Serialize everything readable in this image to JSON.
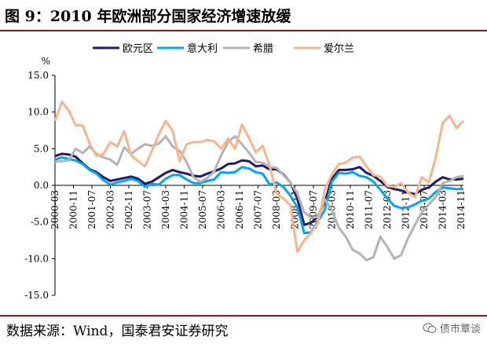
{
  "header": {
    "title": "图 9：2010 年欧洲部分国家经济增速放缓"
  },
  "footer": {
    "source": "数据来源：Wind，国泰君安证券研究",
    "watermark": "债市覃谈",
    "watermark_icon": "wechat-icon"
  },
  "chart_data": {
    "type": "line",
    "ylabel": "%",
    "ylim": [
      -15,
      15
    ],
    "yticks": [
      "15.0",
      "10.0",
      "5.0",
      "0.0",
      "-5.0",
      "-10.0",
      "-15.0"
    ],
    "yticks_values": [
      15,
      10,
      5,
      0,
      -5,
      -10,
      -15
    ],
    "x_start": "2000-03",
    "x_end": "2014-12",
    "x_tick_labels": [
      "2000-03",
      "2000-11",
      "2001-07",
      "2002-03",
      "2002-11",
      "2003-07",
      "2004-03",
      "2004-11",
      "2005-07",
      "2006-03",
      "2006-11",
      "2007-07",
      "2008-03",
      "2008-11",
      "2009-07",
      "2010-03",
      "2010-11",
      "2011-07",
      "2012-03",
      "2012-11",
      "2013-07",
      "2014-03",
      "2014-11"
    ],
    "legend_position": "top",
    "series": [
      {
        "name": "欧元区",
        "color": "#1f1a6e",
        "points": [
          [
            "2000-03",
            4.0
          ],
          [
            "2000-06",
            4.3
          ],
          [
            "2000-09",
            4.2
          ],
          [
            "2000-12",
            3.9
          ],
          [
            "2001-03",
            3.0
          ],
          [
            "2001-06",
            2.2
          ],
          [
            "2001-09",
            1.8
          ],
          [
            "2001-12",
            1.1
          ],
          [
            "2002-03",
            0.6
          ],
          [
            "2002-06",
            0.8
          ],
          [
            "2002-09",
            1.0
          ],
          [
            "2002-12",
            1.2
          ],
          [
            "2003-03",
            0.9
          ],
          [
            "2003-06",
            0.2
          ],
          [
            "2003-09",
            0.5
          ],
          [
            "2003-12",
            1.1
          ],
          [
            "2004-03",
            1.7
          ],
          [
            "2004-06",
            2.1
          ],
          [
            "2004-09",
            1.8
          ],
          [
            "2004-12",
            1.6
          ],
          [
            "2005-03",
            1.3
          ],
          [
            "2005-06",
            1.2
          ],
          [
            "2005-09",
            1.6
          ],
          [
            "2005-12",
            1.9
          ],
          [
            "2006-03",
            2.3
          ],
          [
            "2006-06",
            2.9
          ],
          [
            "2006-09",
            3.0
          ],
          [
            "2006-12",
            3.4
          ],
          [
            "2007-03",
            3.3
          ],
          [
            "2007-06",
            2.6
          ],
          [
            "2007-09",
            2.7
          ],
          [
            "2007-12",
            2.2
          ],
          [
            "2008-03",
            2.2
          ],
          [
            "2008-06",
            1.5
          ],
          [
            "2008-09",
            0.4
          ],
          [
            "2008-12",
            -1.8
          ],
          [
            "2009-03",
            -5.4
          ],
          [
            "2009-06",
            -5.1
          ],
          [
            "2009-09",
            -4.2
          ],
          [
            "2009-12",
            -2.2
          ],
          [
            "2010-03",
            0.9
          ],
          [
            "2010-06",
            2.1
          ],
          [
            "2010-09",
            2.1
          ],
          [
            "2010-12",
            2.2
          ],
          [
            "2011-03",
            2.5
          ],
          [
            "2011-06",
            1.7
          ],
          [
            "2011-09",
            1.3
          ],
          [
            "2011-12",
            0.6
          ],
          [
            "2012-03",
            -0.2
          ],
          [
            "2012-06",
            -0.5
          ],
          [
            "2012-09",
            -0.7
          ],
          [
            "2012-12",
            -1.0
          ],
          [
            "2013-03",
            -1.2
          ],
          [
            "2013-06",
            -0.6
          ],
          [
            "2013-09",
            -0.3
          ],
          [
            "2013-12",
            0.5
          ],
          [
            "2014-03",
            1.1
          ],
          [
            "2014-06",
            0.8
          ],
          [
            "2014-09",
            0.8
          ],
          [
            "2014-12",
            0.9
          ]
        ]
      },
      {
        "name": "意大利",
        "color": "#00a8e8",
        "points": [
          [
            "2000-03",
            3.5
          ],
          [
            "2000-06",
            3.8
          ],
          [
            "2000-09",
            3.6
          ],
          [
            "2000-12",
            3.4
          ],
          [
            "2001-03",
            2.9
          ],
          [
            "2001-06",
            2.1
          ],
          [
            "2001-09",
            1.6
          ],
          [
            "2001-12",
            0.7
          ],
          [
            "2002-03",
            0.1
          ],
          [
            "2002-06",
            0.4
          ],
          [
            "2002-09",
            0.6
          ],
          [
            "2002-12",
            0.9
          ],
          [
            "2003-03",
            0.6
          ],
          [
            "2003-06",
            -0.2
          ],
          [
            "2003-09",
            0.2
          ],
          [
            "2003-12",
            0.1
          ],
          [
            "2004-03",
            0.9
          ],
          [
            "2004-06",
            1.4
          ],
          [
            "2004-09",
            1.4
          ],
          [
            "2004-12",
            0.8
          ],
          [
            "2005-03",
            0.3
          ],
          [
            "2005-06",
            0.3
          ],
          [
            "2005-09",
            0.6
          ],
          [
            "2005-12",
            0.8
          ],
          [
            "2006-03",
            1.8
          ],
          [
            "2006-06",
            1.7
          ],
          [
            "2006-09",
            1.8
          ],
          [
            "2006-12",
            2.5
          ],
          [
            "2007-03",
            2.3
          ],
          [
            "2007-06",
            1.8
          ],
          [
            "2007-09",
            1.6
          ],
          [
            "2007-12",
            0.1
          ],
          [
            "2008-03",
            0.4
          ],
          [
            "2008-06",
            -0.2
          ],
          [
            "2008-09",
            -1.4
          ],
          [
            "2008-12",
            -3.0
          ],
          [
            "2009-03",
            -6.5
          ],
          [
            "2009-06",
            -6.4
          ],
          [
            "2009-09",
            -4.9
          ],
          [
            "2009-12",
            -3.3
          ],
          [
            "2010-03",
            0.5
          ],
          [
            "2010-06",
            1.7
          ],
          [
            "2010-09",
            1.6
          ],
          [
            "2010-12",
            1.8
          ],
          [
            "2011-03",
            1.3
          ],
          [
            "2011-06",
            1.1
          ],
          [
            "2011-09",
            0.5
          ],
          [
            "2011-12",
            -0.6
          ],
          [
            "2012-03",
            -1.8
          ],
          [
            "2012-06",
            -2.8
          ],
          [
            "2012-09",
            -3.1
          ],
          [
            "2012-12",
            -3.0
          ],
          [
            "2013-03",
            -2.6
          ],
          [
            "2013-06",
            -2.1
          ],
          [
            "2013-09",
            -1.8
          ],
          [
            "2013-12",
            -0.9
          ],
          [
            "2014-03",
            -0.3
          ],
          [
            "2014-06",
            -0.4
          ],
          [
            "2014-09",
            -0.5
          ],
          [
            "2014-12",
            -0.5
          ]
        ]
      },
      {
        "name": "希腊",
        "color": "#b3b3b3",
        "points": [
          [
            "2000-03",
            3.2
          ],
          [
            "2000-06",
            3.3
          ],
          [
            "2000-09",
            3.4
          ],
          [
            "2000-12",
            5.0
          ],
          [
            "2001-03",
            4.4
          ],
          [
            "2001-06",
            5.3
          ],
          [
            "2001-09",
            4.3
          ],
          [
            "2001-12",
            3.8
          ],
          [
            "2002-03",
            3.5
          ],
          [
            "2002-06",
            2.8
          ],
          [
            "2002-09",
            5.2
          ],
          [
            "2002-12",
            4.3
          ],
          [
            "2003-03",
            5.0
          ],
          [
            "2003-06",
            5.6
          ],
          [
            "2003-09",
            5.4
          ],
          [
            "2003-12",
            5.7
          ],
          [
            "2004-03",
            6.7
          ],
          [
            "2004-06",
            5.3
          ],
          [
            "2004-09",
            4.7
          ],
          [
            "2004-12",
            3.2
          ],
          [
            "2005-03",
            1.1
          ],
          [
            "2005-06",
            0.5
          ],
          [
            "2005-09",
            1.0
          ],
          [
            "2005-12",
            1.9
          ],
          [
            "2006-03",
            4.1
          ],
          [
            "2006-06",
            5.9
          ],
          [
            "2006-09",
            6.7
          ],
          [
            "2006-12",
            5.6
          ],
          [
            "2007-03",
            4.5
          ],
          [
            "2007-06",
            3.2
          ],
          [
            "2007-09",
            3.1
          ],
          [
            "2007-12",
            2.5
          ],
          [
            "2008-03",
            2.4
          ],
          [
            "2008-06",
            1.4
          ],
          [
            "2008-09",
            0.4
          ],
          [
            "2008-12",
            -1.1
          ],
          [
            "2009-03",
            -3.7
          ],
          [
            "2009-06",
            -4.4
          ],
          [
            "2009-09",
            -4.3
          ],
          [
            "2009-12",
            -1.9
          ],
          [
            "2010-03",
            -3.4
          ],
          [
            "2010-06",
            -5.8
          ],
          [
            "2010-09",
            -7.0
          ],
          [
            "2010-12",
            -8.8
          ],
          [
            "2011-03",
            -9.3
          ],
          [
            "2011-06",
            -10.2
          ],
          [
            "2011-09",
            -9.8
          ],
          [
            "2011-12",
            -7.0
          ],
          [
            "2012-03",
            -8.4
          ],
          [
            "2012-06",
            -10.0
          ],
          [
            "2012-09",
            -9.5
          ],
          [
            "2012-12",
            -7.2
          ],
          [
            "2013-03",
            -5.4
          ],
          [
            "2013-06",
            -3.7
          ],
          [
            "2013-09",
            -2.6
          ],
          [
            "2013-12",
            -1.6
          ],
          [
            "2014-03",
            0.3
          ],
          [
            "2014-06",
            0.6
          ],
          [
            "2014-09",
            1.1
          ],
          [
            "2014-12",
            1.3
          ]
        ]
      },
      {
        "name": "爱尔兰",
        "color": "#f8b48a",
        "points": [
          [
            "2000-03",
            8.8
          ],
          [
            "2000-06",
            11.4
          ],
          [
            "2000-09",
            10.2
          ],
          [
            "2000-12",
            8.2
          ],
          [
            "2001-03",
            8.2
          ],
          [
            "2001-06",
            5.7
          ],
          [
            "2001-09",
            4.0
          ],
          [
            "2001-12",
            4.3
          ],
          [
            "2002-03",
            5.9
          ],
          [
            "2002-06",
            5.3
          ],
          [
            "2002-09",
            7.4
          ],
          [
            "2002-12",
            4.1
          ],
          [
            "2003-03",
            3.3
          ],
          [
            "2003-06",
            2.6
          ],
          [
            "2003-09",
            4.7
          ],
          [
            "2003-12",
            7.0
          ],
          [
            "2004-03",
            8.8
          ],
          [
            "2004-06",
            7.4
          ],
          [
            "2004-09",
            3.3
          ],
          [
            "2004-12",
            5.6
          ],
          [
            "2005-03",
            5.9
          ],
          [
            "2005-06",
            5.9
          ],
          [
            "2005-09",
            6.2
          ],
          [
            "2005-12",
            6.0
          ],
          [
            "2006-03",
            5.0
          ],
          [
            "2006-06",
            6.4
          ],
          [
            "2006-09",
            5.0
          ],
          [
            "2006-12",
            8.3
          ],
          [
            "2007-03",
            6.5
          ],
          [
            "2007-06",
            4.5
          ],
          [
            "2007-09",
            5.4
          ],
          [
            "2007-12",
            2.7
          ],
          [
            "2008-03",
            -1.1
          ],
          [
            "2008-06",
            -1.8
          ],
          [
            "2008-09",
            -2.7
          ],
          [
            "2008-12",
            -9.1
          ],
          [
            "2009-03",
            -7.5
          ],
          [
            "2009-06",
            -6.5
          ],
          [
            "2009-09",
            -5.1
          ],
          [
            "2009-12",
            -0.5
          ],
          [
            "2010-03",
            1.5
          ],
          [
            "2010-06",
            2.9
          ],
          [
            "2010-09",
            3.1
          ],
          [
            "2010-12",
            3.8
          ],
          [
            "2011-03",
            3.9
          ],
          [
            "2011-06",
            2.6
          ],
          [
            "2011-09",
            1.4
          ],
          [
            "2011-12",
            1.2
          ],
          [
            "2012-03",
            -0.1
          ],
          [
            "2012-06",
            -0.2
          ],
          [
            "2012-09",
            0.3
          ],
          [
            "2012-12",
            -1.0
          ],
          [
            "2013-03",
            -1.6
          ],
          [
            "2013-06",
            1.1
          ],
          [
            "2013-09",
            0.4
          ],
          [
            "2013-12",
            3.8
          ],
          [
            "2014-03",
            8.5
          ],
          [
            "2014-06",
            9.5
          ],
          [
            "2014-09",
            7.8
          ],
          [
            "2014-12",
            8.8
          ]
        ]
      }
    ]
  }
}
